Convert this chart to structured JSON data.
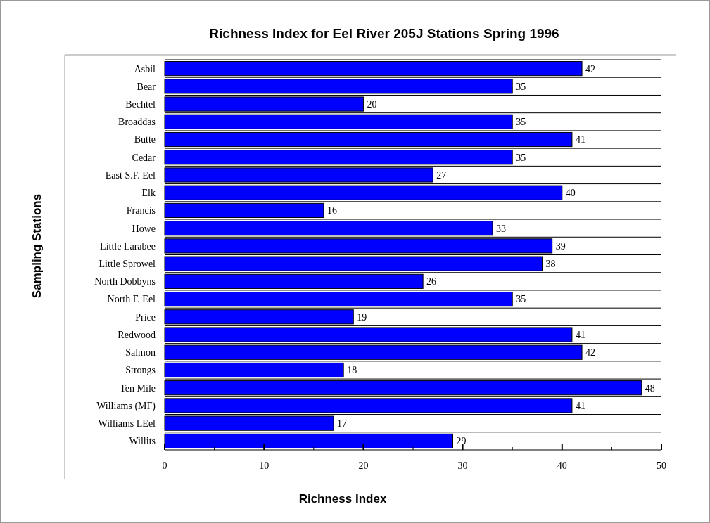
{
  "chart_data": {
    "type": "bar",
    "orientation": "horizontal",
    "title": "Richness Index for Eel River 205J Stations Spring 1996",
    "xlabel": "Richness Index",
    "ylabel": "Sampling Stations",
    "categories": [
      "Asbil",
      "Bear",
      "Bechtel",
      "Broaddas",
      "Butte",
      "Cedar",
      "East S.F. Eel",
      "Elk",
      "Francis",
      "Howe",
      "Little Larabee",
      "Little Sprowel",
      "North Dobbyns",
      "North F. Eel",
      "Price",
      "Redwood",
      "Salmon",
      "Strongs",
      "Ten Mile",
      "Williams (MF)",
      "Williams LEel",
      "Willits"
    ],
    "values": [
      42,
      35,
      20,
      35,
      41,
      35,
      27,
      40,
      16,
      33,
      39,
      38,
      26,
      35,
      19,
      41,
      42,
      18,
      48,
      41,
      17,
      29
    ],
    "color": "#0000ff",
    "xlim": [
      0,
      50
    ],
    "xticks": [
      0,
      10,
      20,
      30,
      40,
      50
    ],
    "grid": "y",
    "data_labels": true
  }
}
